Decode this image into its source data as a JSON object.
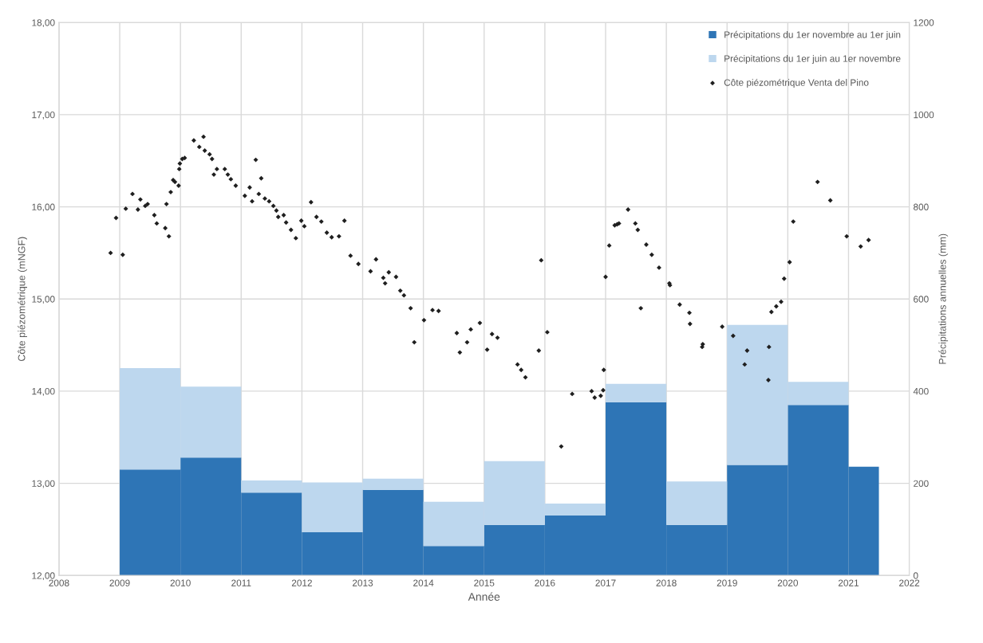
{
  "chart_data": {
    "type": "bar",
    "x": [
      2009.5,
      2010.5,
      2011.5,
      2012.5,
      2013.5,
      2014.5,
      2015.5,
      2016.5,
      2017.5,
      2018.5,
      2019.5,
      2020.5,
      2021.25
    ],
    "xlabel": "Année",
    "ylabel": "Côte piézométrique (mNGF)",
    "y2label": "Précipitations annuelles (mm)",
    "stacked": true,
    "grid": true,
    "legend": "top right",
    "xlim": [
      2008,
      2022
    ],
    "xticks": [
      2008,
      2009,
      2010,
      2011,
      2012,
      2013,
      2014,
      2015,
      2016,
      2017,
      2018,
      2019,
      2020,
      2021,
      2022
    ],
    "ylim": [
      12,
      18
    ],
    "yticks": [
      {
        "value": 12,
        "label": "12,00"
      },
      {
        "value": 13,
        "label": "13,00"
      },
      {
        "value": 14,
        "label": "14,00"
      },
      {
        "value": 15,
        "label": "15,00"
      },
      {
        "value": 16,
        "label": "16,00"
      },
      {
        "value": 17,
        "label": "17,00"
      },
      {
        "value": 18,
        "label": "18,00"
      }
    ],
    "y2lim": [
      0,
      1200
    ],
    "y2ticks": [
      0,
      200,
      400,
      600,
      800,
      1000,
      1200
    ],
    "series": [
      {
        "axis": "y2",
        "name": "Précipitations du 1er novembre au 1er juin",
        "color": "#2e75b6",
        "values": [
          230,
          256,
          180,
          94,
          186,
          64,
          110,
          130,
          376,
          110,
          240,
          370,
          236
        ]
      },
      {
        "axis": "y2",
        "name": "Précipitations du 1er juin au 1er novembre",
        "color": "#bdd7ee",
        "values": [
          220,
          154,
          26,
          108,
          24,
          96,
          138,
          26,
          40,
          94,
          304,
          50,
          0
        ]
      },
      {
        "type": "scatter",
        "axis": "y",
        "name": "Côte piézométrique Venta del Pino",
        "color": "#1f1f1f",
        "marker": "diamond",
        "x": [
          2008.85,
          2009.05,
          2008.94,
          2009.1,
          2009.21,
          2009.3,
          2009.34,
          2009.42,
          2009.46,
          2009.57,
          2009.61,
          2009.75,
          2009.81,
          2009.77,
          2009.84,
          2009.88,
          2009.91,
          2009.97,
          2009.98,
          2009.99,
          2010.03,
          2010.07,
          2010.22,
          2010.38,
          2010.31,
          2010.4,
          2010.48,
          2010.52,
          2010.6,
          2010.55,
          2010.73,
          2010.78,
          2010.83,
          2010.91,
          2011.24,
          2011.14,
          2011.33,
          2011.06,
          2011.18,
          2011.29,
          2011.39,
          2011.46,
          2011.53,
          2011.58,
          2011.61,
          2011.7,
          2011.74,
          2011.82,
          2011.9,
          2011.99,
          2012.04,
          2012.15,
          2012.24,
          2012.32,
          2012.41,
          2012.49,
          2012.61,
          2012.7,
          2012.8,
          2012.93,
          2013.13,
          2013.22,
          2013.34,
          2013.37,
          2013.43,
          2013.55,
          2013.62,
          2013.68,
          2013.79,
          2013.85,
          2014.01,
          2014.15,
          2014.25,
          2014.55,
          2014.6,
          2014.72,
          2014.78,
          2014.93,
          2015.05,
          2015.13,
          2015.22,
          2015.55,
          2015.61,
          2015.68,
          2015.9,
          2015.94,
          2016.04,
          2016.27,
          2016.45,
          2016.77,
          2016.82,
          2016.92,
          2016.96,
          2016.97,
          2017.0,
          2017.06,
          2017.15,
          2017.19,
          2017.22,
          2017.37,
          2017.49,
          2017.53,
          2017.58,
          2017.67,
          2017.76,
          2017.88,
          2018.05,
          2018.06,
          2018.22,
          2018.38,
          2018.39,
          2018.59,
          2018.6,
          2018.92,
          2019.1,
          2019.33,
          2019.29,
          2019.68,
          2019.69,
          2019.73,
          2019.81,
          2019.89,
          2019.94,
          2020.03,
          2020.09,
          2020.49,
          2020.7,
          2020.97,
          2021.2,
          2021.33
        ],
        "values": [
          15.5,
          15.48,
          15.88,
          15.98,
          16.14,
          15.97,
          16.08,
          16.01,
          16.03,
          15.91,
          15.82,
          15.77,
          15.68,
          16.03,
          16.16,
          16.29,
          16.27,
          16.23,
          16.41,
          16.47,
          16.52,
          16.53,
          16.72,
          16.76,
          16.65,
          16.61,
          16.57,
          16.52,
          16.41,
          16.35,
          16.41,
          16.35,
          16.3,
          16.23,
          16.51,
          16.21,
          16.31,
          16.12,
          16.06,
          16.14,
          16.09,
          16.06,
          16.01,
          15.96,
          15.89,
          15.91,
          15.83,
          15.75,
          15.66,
          15.85,
          15.79,
          16.05,
          15.89,
          15.84,
          15.72,
          15.67,
          15.68,
          15.85,
          15.47,
          15.38,
          15.3,
          15.43,
          15.23,
          15.17,
          15.29,
          15.24,
          15.09,
          15.04,
          14.9,
          14.53,
          14.77,
          14.88,
          14.87,
          14.63,
          14.42,
          14.53,
          14.67,
          14.74,
          14.45,
          14.62,
          14.58,
          14.29,
          14.23,
          14.15,
          14.44,
          15.42,
          14.64,
          13.4,
          13.97,
          14.0,
          13.93,
          13.95,
          14.01,
          14.23,
          15.24,
          15.58,
          15.8,
          15.81,
          15.82,
          15.97,
          15.82,
          15.75,
          14.9,
          15.59,
          15.48,
          15.34,
          15.17,
          15.15,
          14.94,
          14.85,
          14.73,
          14.48,
          14.51,
          14.7,
          14.6,
          14.44,
          14.29,
          14.12,
          14.48,
          14.86,
          14.92,
          14.97,
          15.22,
          15.4,
          15.84,
          16.27,
          16.07,
          15.68,
          15.57,
          15.64
        ]
      }
    ]
  }
}
